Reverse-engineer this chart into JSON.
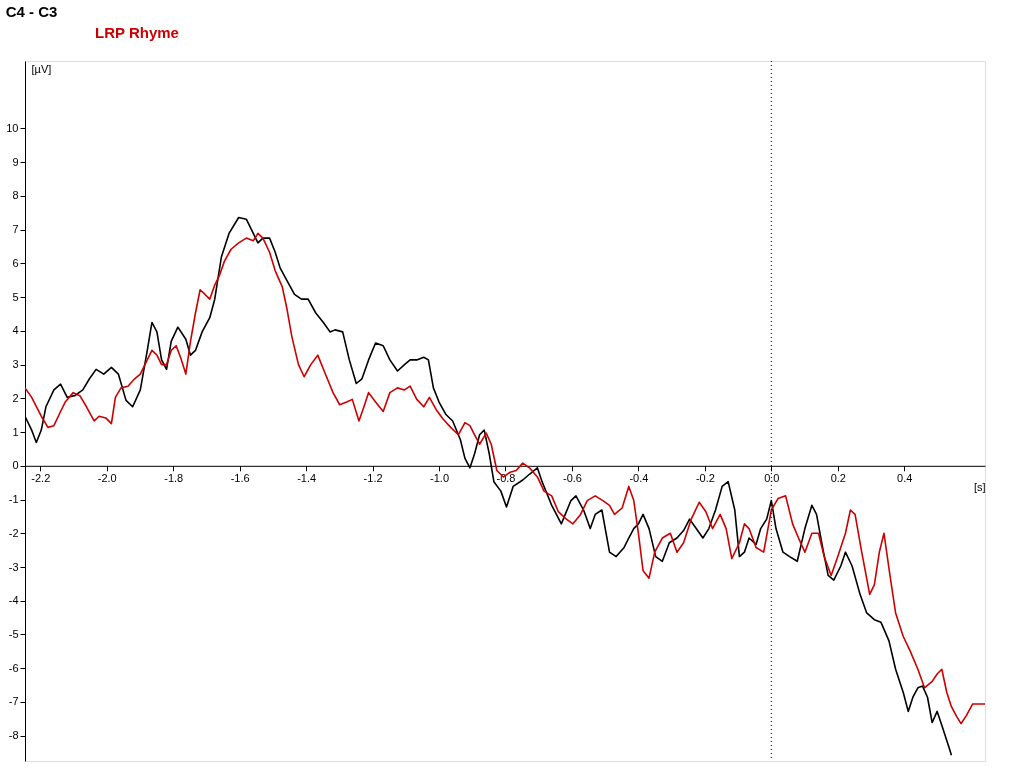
{
  "chart_data": {
    "type": "line",
    "title": "C4 - C3",
    "ylabel": "[µV]",
    "xlabel": "[s]",
    "xlim": [
      -2.246,
      0.643
    ],
    "ylim": [
      -8.75,
      12.0
    ],
    "xticks": [
      -2.2,
      {
        "value": -2,
        "label": "-2.0"
      },
      -1.8,
      -1.6,
      -1.4,
      -1.2,
      {
        "value": -1,
        "label": "-1.0"
      },
      -0.8,
      -0.6,
      -0.4,
      -0.2,
      {
        "value": 0,
        "label": "0.0"
      },
      0.2,
      0.4
    ],
    "yticks": [
      -8,
      -7,
      -6,
      -5,
      -4,
      -3,
      -2,
      -1,
      0,
      1,
      2,
      3,
      4,
      5,
      6,
      7,
      8,
      9,
      10
    ],
    "grid": false,
    "legend": "top left",
    "marker": "none",
    "line_style": "solid",
    "ref_lines": [
      {
        "axis": "x",
        "value": 0,
        "color": "#000000",
        "line_style": "dotted"
      }
    ],
    "series": [
      {
        "color": "#000000",
        "x": [
          -2.246,
          -2.226,
          -2.212,
          -2.197,
          -2.183,
          -2.159,
          -2.139,
          -2.119,
          -2.096,
          -2.072,
          -2.052,
          -2.032,
          -2.009,
          -1.986,
          -1.965,
          -1.942,
          -1.922,
          -1.899,
          -1.878,
          -1.864,
          -1.849,
          -1.835,
          -1.82,
          -1.806,
          -1.786,
          -1.762,
          -1.748,
          -1.733,
          -1.713,
          -1.69,
          -1.675,
          -1.655,
          -1.632,
          -1.603,
          -1.58,
          -1.559,
          -1.545,
          -1.53,
          -1.51,
          -1.493,
          -1.478,
          -1.458,
          -1.435,
          -1.414,
          -1.394,
          -1.371,
          -1.348,
          -1.328,
          -1.313,
          -1.29,
          -1.27,
          -1.249,
          -1.232,
          -1.212,
          -1.191,
          -1.168,
          -1.148,
          -1.125,
          -1.104,
          -1.087,
          -1.067,
          -1.046,
          -1.032,
          -1.017,
          -1.0,
          -0.98,
          -0.959,
          -0.936,
          -0.922,
          -0.907,
          -0.893,
          -0.878,
          -0.864,
          -0.849,
          -0.835,
          -0.814,
          -0.797,
          -0.777,
          -0.748,
          -0.728,
          -0.704,
          -0.69,
          -0.661,
          -0.632,
          -0.603,
          -0.588,
          -0.565,
          -0.545,
          -0.53,
          -0.51,
          -0.487,
          -0.467,
          -0.443,
          -0.429,
          -0.414,
          -0.4,
          -0.386,
          -0.368,
          -0.348,
          -0.328,
          -0.307,
          -0.284,
          -0.264,
          -0.246,
          -0.226,
          -0.206,
          -0.188,
          -0.168,
          -0.148,
          -0.13,
          -0.11,
          -0.096,
          -0.081,
          -0.067,
          -0.046,
          -0.032,
          -0.014,
          0,
          0.014,
          0.035,
          0.055,
          0.078,
          0.101,
          0.122,
          0.136,
          0.157,
          0.171,
          0.188,
          0.209,
          0.223,
          0.243,
          0.267,
          0.287,
          0.31,
          0.33,
          0.354,
          0.374,
          0.397,
          0.412,
          0.426,
          0.441,
          0.455,
          0.47,
          0.484,
          0.499,
          0.513,
          0.536,
          0.542
        ],
        "values": [
          1.47,
          1.06,
          0.69,
          1.06,
          1.75,
          2.25,
          2.42,
          2.03,
          2.08,
          2.25,
          2.58,
          2.86,
          2.72,
          2.92,
          2.72,
          1.94,
          1.75,
          2.25,
          3.42,
          4.25,
          3.97,
          3.14,
          2.86,
          3.69,
          4.11,
          3.75,
          3.28,
          3.42,
          3.97,
          4.39,
          4.94,
          6.19,
          6.89,
          7.36,
          7.31,
          6.89,
          6.61,
          6.75,
          6.75,
          6.33,
          5.86,
          5.5,
          5.08,
          4.94,
          4.94,
          4.53,
          4.25,
          3.97,
          4.03,
          3.97,
          3.14,
          2.44,
          2.58,
          3.14,
          3.64,
          3.56,
          3.14,
          2.81,
          3.0,
          3.14,
          3.14,
          3.22,
          3.14,
          2.31,
          1.89,
          1.53,
          1.33,
          0.78,
          0.22,
          -0.06,
          0.36,
          0.92,
          1.06,
          0.36,
          -0.47,
          -0.75,
          -1.22,
          -0.61,
          -0.42,
          -0.25,
          -0.06,
          -0.47,
          -1.17,
          -1.72,
          -1.03,
          -0.89,
          -1.31,
          -1.86,
          -1.44,
          -1.31,
          -2.56,
          -2.69,
          -2.42,
          -2.14,
          -1.86,
          -1.72,
          -1.44,
          -1.86,
          -2.69,
          -2.83,
          -2.28,
          -2.14,
          -1.92,
          -1.58,
          -1.86,
          -2.14,
          -1.86,
          -1.31,
          -0.61,
          -0.47,
          -1.31,
          -2.69,
          -2.56,
          -2.14,
          -2.33,
          -1.86,
          -1.58,
          -1.03,
          -1.86,
          -2.56,
          -2.69,
          -2.83,
          -1.86,
          -1.17,
          -1.44,
          -2.56,
          -3.25,
          -3.39,
          -2.97,
          -2.56,
          -2.97,
          -3.81,
          -4.36,
          -4.56,
          -4.64,
          -5.19,
          -6.03,
          -6.72,
          -7.28,
          -6.86,
          -6.58,
          -6.53,
          -6.86,
          -7.61,
          -7.28,
          -7.69,
          -8.39,
          -8.58
        ]
      },
      {
        "name": "LRP Rhyme",
        "color": "#cc0000",
        "x": [
          -2.246,
          -2.226,
          -2.197,
          -2.177,
          -2.159,
          -2.139,
          -2.125,
          -2.101,
          -2.081,
          -2.061,
          -2.038,
          -2.023,
          -2.003,
          -1.986,
          -1.974,
          -1.957,
          -1.936,
          -1.916,
          -1.899,
          -1.878,
          -1.864,
          -1.849,
          -1.835,
          -1.82,
          -1.806,
          -1.791,
          -1.777,
          -1.762,
          -1.748,
          -1.733,
          -1.719,
          -1.704,
          -1.69,
          -1.675,
          -1.661,
          -1.646,
          -1.626,
          -1.603,
          -1.58,
          -1.559,
          -1.545,
          -1.53,
          -1.51,
          -1.493,
          -1.472,
          -1.458,
          -1.443,
          -1.423,
          -1.406,
          -1.386,
          -1.365,
          -1.342,
          -1.319,
          -1.299,
          -1.278,
          -1.261,
          -1.241,
          -1.226,
          -1.212,
          -1.191,
          -1.168,
          -1.148,
          -1.125,
          -1.104,
          -1.087,
          -1.067,
          -1.046,
          -1.029,
          -1.009,
          -0.988,
          -0.965,
          -0.942,
          -0.922,
          -0.907,
          -0.893,
          -0.878,
          -0.858,
          -0.843,
          -0.826,
          -0.806,
          -0.786,
          -0.768,
          -0.748,
          -0.728,
          -0.704,
          -0.684,
          -0.661,
          -0.641,
          -0.617,
          -0.597,
          -0.574,
          -0.554,
          -0.53,
          -0.507,
          -0.487,
          -0.472,
          -0.449,
          -0.429,
          -0.414,
          -0.4,
          -0.386,
          -0.368,
          -0.351,
          -0.328,
          -0.304,
          -0.284,
          -0.264,
          -0.241,
          -0.217,
          -0.197,
          -0.177,
          -0.154,
          -0.136,
          -0.119,
          -0.096,
          -0.081,
          -0.067,
          -0.046,
          -0.023,
          0,
          0.02,
          0.043,
          0.064,
          0.084,
          0.101,
          0.122,
          0.142,
          0.159,
          0.18,
          0.2,
          0.223,
          0.238,
          0.252,
          0.272,
          0.296,
          0.31,
          0.325,
          0.339,
          0.357,
          0.374,
          0.397,
          0.417,
          0.441,
          0.461,
          0.484,
          0.499,
          0.513,
          0.528,
          0.542,
          0.557,
          0.571,
          0.586,
          0.606,
          0.643
        ],
        "values": [
          2.31,
          2.03,
          1.47,
          1.14,
          1.19,
          1.61,
          1.89,
          2.17,
          2.08,
          1.75,
          1.33,
          1.47,
          1.42,
          1.25,
          2.03,
          2.31,
          2.36,
          2.58,
          2.72,
          3.14,
          3.42,
          3.28,
          3.0,
          3.0,
          3.42,
          3.56,
          3.19,
          2.72,
          3.69,
          4.53,
          5.22,
          5.08,
          4.94,
          5.36,
          5.64,
          6.06,
          6.42,
          6.61,
          6.75,
          6.67,
          6.89,
          6.75,
          6.33,
          5.78,
          5.31,
          4.67,
          3.83,
          3.0,
          2.64,
          3.0,
          3.28,
          2.72,
          2.17,
          1.81,
          1.89,
          1.97,
          1.33,
          1.75,
          2.17,
          1.89,
          1.61,
          2.17,
          2.31,
          2.25,
          2.36,
          1.97,
          1.75,
          2.03,
          1.67,
          1.39,
          1.14,
          0.92,
          1.28,
          1.19,
          0.92,
          0.64,
          0.97,
          0.64,
          -0.14,
          -0.33,
          -0.19,
          -0.14,
          0.08,
          -0.06,
          -0.33,
          -0.75,
          -0.89,
          -1.36,
          -1.58,
          -1.72,
          -1.44,
          -1.03,
          -0.89,
          -1.03,
          -1.17,
          -1.44,
          -1.25,
          -0.61,
          -1.03,
          -2.0,
          -3.11,
          -3.33,
          -2.56,
          -2.14,
          -2.0,
          -2.56,
          -2.28,
          -1.58,
          -1.08,
          -1.36,
          -1.86,
          -1.44,
          -1.86,
          -2.75,
          -2.28,
          -1.72,
          -1.86,
          -2.42,
          -2.56,
          -1.31,
          -0.97,
          -0.89,
          -1.72,
          -2.19,
          -2.56,
          -2.0,
          -2.0,
          -2.69,
          -3.25,
          -2.69,
          -2.0,
          -1.31,
          -1.44,
          -2.56,
          -3.81,
          -3.53,
          -2.56,
          -2.0,
          -3.25,
          -4.36,
          -5.06,
          -5.47,
          -6.03,
          -6.58,
          -6.39,
          -6.17,
          -6.03,
          -6.72,
          -7.14,
          -7.42,
          -7.64,
          -7.42,
          -7.06,
          -7.06
        ]
      }
    ]
  }
}
